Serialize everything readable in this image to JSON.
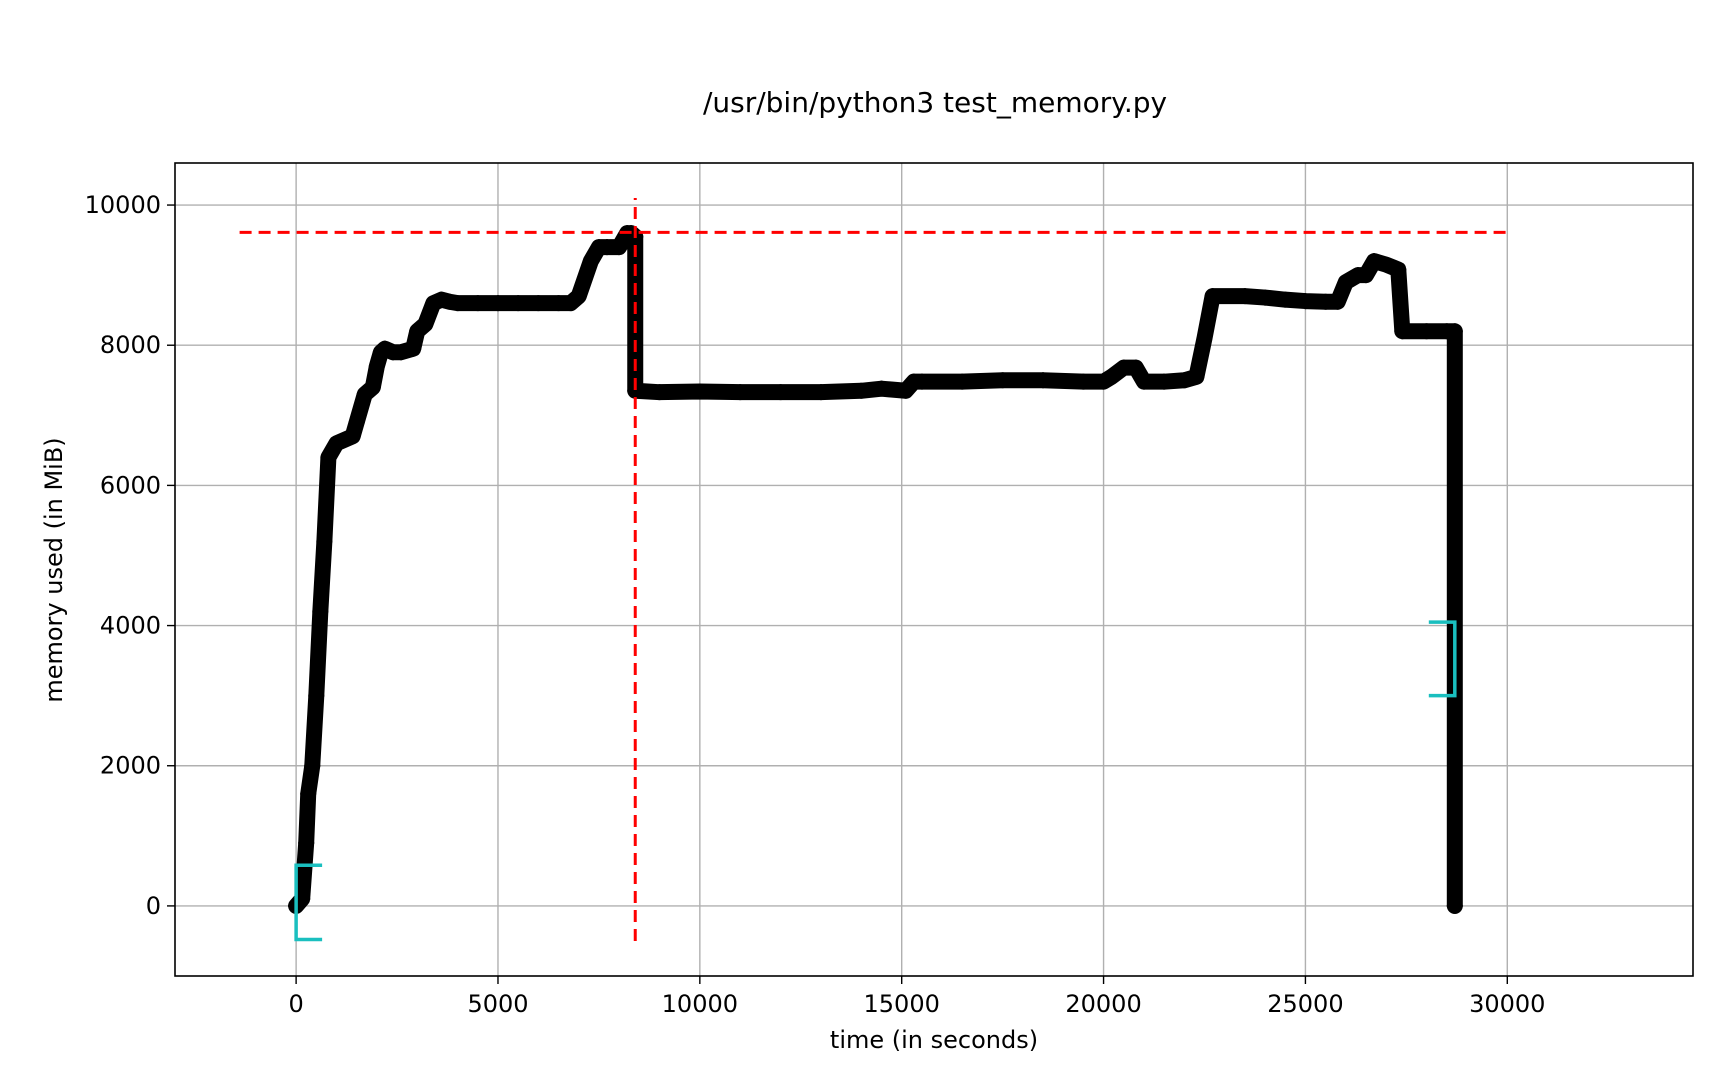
{
  "chart_data": {
    "type": "line",
    "title": "/usr/bin/python3 test_memory.py",
    "xlabel": "time (in seconds)",
    "ylabel": "memory used (in MiB)",
    "xlim": [
      -3000,
      34600
    ],
    "ylim": [
      -1000,
      10600
    ],
    "xticks": [
      0,
      5000,
      10000,
      15000,
      20000,
      25000,
      30000
    ],
    "yticks": [
      0,
      2000,
      4000,
      6000,
      8000,
      10000
    ],
    "xtick_labels": [
      "0",
      "5000",
      "10000",
      "15000",
      "20000",
      "25000",
      "30000"
    ],
    "ytick_labels": [
      "0",
      "2000",
      "4000",
      "6000",
      "8000",
      "10000"
    ],
    "grid": true,
    "series": [
      {
        "color": "#000000",
        "marker": "+",
        "x": [
          0,
          150,
          250,
          300,
          400,
          500,
          600,
          700,
          800,
          850,
          900,
          1000,
          1200,
          1400,
          1500,
          1700,
          1900,
          2000,
          2100,
          2200,
          2400,
          2600,
          2900,
          3000,
          3200,
          3400,
          3600,
          3800,
          4000,
          4500,
          5000,
          5500,
          6000,
          6500,
          6800,
          7000,
          7300,
          7500,
          7700,
          8000,
          8200,
          8300,
          8400,
          8400,
          9000,
          10000,
          11000,
          12000,
          13000,
          14000,
          14500,
          15100,
          15300,
          15500,
          16500,
          17500,
          18500,
          19500,
          20000,
          20200,
          20500,
          20800,
          21000,
          21500,
          22000,
          22300,
          22500,
          22700,
          23500,
          24000,
          24500,
          25000,
          25500,
          25800,
          26000,
          26300,
          26500,
          26700,
          27000,
          27300,
          27400,
          28000,
          28500,
          28700,
          28700
        ],
        "y": [
          0,
          100,
          900,
          1600,
          2000,
          3000,
          4200,
          5200,
          6400,
          6450,
          6500,
          6600,
          6650,
          6700,
          6900,
          7300,
          7400,
          7700,
          7900,
          7950,
          7900,
          7900,
          7950,
          8200,
          8300,
          8600,
          8650,
          8620,
          8600,
          8600,
          8600,
          8600,
          8600,
          8600,
          8600,
          8700,
          9200,
          9400,
          9400,
          9400,
          9600,
          9600,
          9550,
          7350,
          7330,
          7340,
          7330,
          7330,
          7330,
          7350,
          7380,
          7350,
          7480,
          7480,
          7480,
          7500,
          7500,
          7480,
          7480,
          7550,
          7680,
          7680,
          7480,
          7480,
          7500,
          7550,
          8100,
          8700,
          8700,
          8680,
          8650,
          8630,
          8620,
          8620,
          8900,
          9000,
          9000,
          9200,
          9150,
          9080,
          8200,
          8200,
          8200,
          8200,
          0
        ]
      }
    ],
    "hlines": [
      {
        "y": 9610,
        "x_from": -1400,
        "x_to": 30000,
        "color": "#ff0000",
        "style": "dashed"
      }
    ],
    "vlines": [
      {
        "x": 8400,
        "y_from": -500,
        "y_to": 10100,
        "color": "#ff0000",
        "style": "dashed"
      }
    ],
    "brackets": [
      {
        "x": 0,
        "y_low": -480,
        "y_high": 580,
        "direction": "open-right",
        "color": "#1abfbf"
      },
      {
        "x": 28700,
        "y_low": 3000,
        "y_high": 4050,
        "direction": "open-left",
        "color": "#1abfbf"
      }
    ],
    "peak_x": 8400,
    "peak_y": 9610,
    "end_markers_x": 28700,
    "end_markers_y": [
      0,
      3450,
      3500,
      4250,
      5480,
      6300,
      6500,
      6650,
      6800,
      7000,
      7100,
      7200,
      7300,
      7400
    ],
    "drop_markers_x": 8400,
    "drop_markers_y": [
      7330,
      8100,
      9550
    ]
  }
}
